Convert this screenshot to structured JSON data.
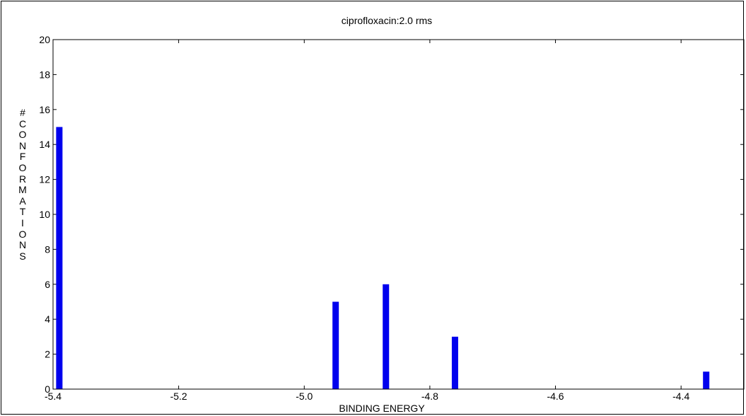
{
  "chart_data": {
    "type": "bar",
    "title": "ciprofloxacin:2.0 rms",
    "xlabel": "BINDING ENERGY",
    "ylabel": "# CONFORMATIONS",
    "xlim": [
      -5.4,
      -4.3
    ],
    "ylim": [
      0,
      20
    ],
    "x_ticks": [
      -5.4,
      -5.2,
      -5.0,
      -4.8,
      -4.6,
      -4.4
    ],
    "x_tick_labels": [
      "-5.4",
      "-5.2",
      "-5.0",
      "-4.8",
      "-4.6",
      "-4.4"
    ],
    "y_ticks": [
      0,
      2,
      4,
      6,
      8,
      10,
      12,
      14,
      16,
      18,
      20
    ],
    "y_tick_labels": [
      "0",
      "2",
      "4",
      "6",
      "8",
      "10",
      "12",
      "14",
      "16",
      "18",
      "20"
    ],
    "x": [
      -5.39,
      -4.95,
      -4.87,
      -4.76,
      -4.36
    ],
    "values": [
      15,
      5,
      6,
      3,
      1
    ],
    "bar_color": "#0000ee",
    "grid": false
  }
}
